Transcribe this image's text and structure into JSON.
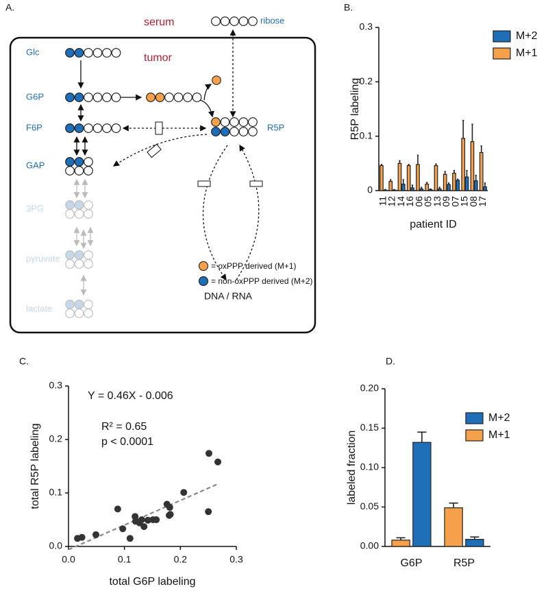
{
  "diagram": {
    "panel_label": "A.",
    "serum": "serum",
    "tumor": "tumor",
    "ribose": "ribose",
    "glc": "Glc",
    "g6p": "G6P",
    "f6p": "F6P",
    "gap": "GAP",
    "pg3": "3PG",
    "pyruvate": "pyruvate",
    "lactate": "lactate",
    "r5p": "R5P",
    "dna_rna": "DNA / RNA",
    "legend_orange": "= oxPPP derived (M+1)",
    "legend_blue": "= non-oxPPP derived (M+2)"
  },
  "chart_data": [
    {
      "type": "bar",
      "panel_label": "B.",
      "ylabel": "R5P labeling",
      "xlabel": "patient ID",
      "categories": [
        "11",
        "12",
        "14",
        "16",
        "06",
        "05",
        "13",
        "09",
        "07",
        "15",
        "08",
        "17"
      ],
      "series": [
        {
          "name": "M+2",
          "color": "#1f6fb8",
          "values": [
            0.001,
            0.001,
            0.012,
            0.005,
            0.003,
            0.002,
            0.003,
            0.011,
            0.019,
            0.025,
            0.018,
            0.007
          ],
          "errors": [
            0.001,
            0.001,
            0.008,
            0.005,
            0.003,
            0.001,
            0.003,
            0.003,
            0.002,
            0.012,
            0.01,
            0.007
          ]
        },
        {
          "name": "M+1",
          "color": "#f5a04a",
          "values": [
            0.046,
            0.017,
            0.05,
            0.046,
            0.048,
            0.012,
            0.046,
            0.03,
            0.032,
            0.096,
            0.09,
            0.07
          ],
          "errors": [
            0.002,
            0.003,
            0.005,
            0.002,
            0.017,
            0.003,
            0.003,
            0.005,
            0.005,
            0.033,
            0.032,
            0.012
          ]
        }
      ],
      "ylim": [
        0,
        0.3
      ],
      "yticks": [
        0,
        0.1,
        0.2,
        0.3
      ],
      "legend": "top-right"
    },
    {
      "type": "scatter",
      "panel_label": "C.",
      "xlabel": "total G6P labeling",
      "ylabel": "total R5P labeling",
      "color": "#333333",
      "x": [
        0.016,
        0.024,
        0.049,
        0.088,
        0.097,
        0.11,
        0.119,
        0.12,
        0.127,
        0.131,
        0.135,
        0.142,
        0.151,
        0.157,
        0.176,
        0.181,
        0.18,
        0.182,
        0.206,
        0.251,
        0.25,
        0.267
      ],
      "values": [
        0.015,
        0.017,
        0.022,
        0.07,
        0.033,
        0.015,
        0.056,
        0.047,
        0.044,
        0.05,
        0.037,
        0.049,
        0.05,
        0.05,
        0.079,
        0.073,
        0.058,
        0.06,
        0.101,
        0.174,
        0.065,
        0.158
      ],
      "trendline": {
        "slope": 0.46,
        "intercept": -0.006
      },
      "annotations": [
        "Y = 0.46X - 0.006",
        "R² = 0.65",
        "p < 0.0001"
      ],
      "xlim": [
        0,
        0.3
      ],
      "xticks": [
        {
          "value": 0,
          "label": "0.0"
        },
        0.1,
        0.2,
        0.3
      ],
      "ylim": [
        0,
        0.3
      ],
      "yticks": [
        {
          "value": 0,
          "label": "0.0"
        },
        0.1,
        0.2,
        0.3
      ]
    },
    {
      "type": "bar",
      "panel_label": "D.",
      "ylabel": "labeled fraction",
      "categories": [
        "G6P",
        "R5P"
      ],
      "series": [
        {
          "name": "M+2",
          "color": "#1f6fb8",
          "values": [
            0.132,
            0.009
          ],
          "errors": [
            0.013,
            0.003
          ]
        },
        {
          "name": "M+1",
          "color": "#f5a04a",
          "values": [
            0.008,
            0.049
          ],
          "errors": [
            0.003,
            0.006
          ]
        }
      ],
      "ylim": [
        0,
        0.2
      ],
      "yticks": [
        {
          "value": 0,
          "label": "0.00"
        },
        {
          "value": 0.05,
          "label": "0.05"
        },
        {
          "value": 0.1,
          "label": "0.10"
        },
        {
          "value": 0.15,
          "label": "0.15"
        },
        {
          "value": 0.2,
          "label": "0.20"
        }
      ],
      "legend": "top-right"
    }
  ]
}
